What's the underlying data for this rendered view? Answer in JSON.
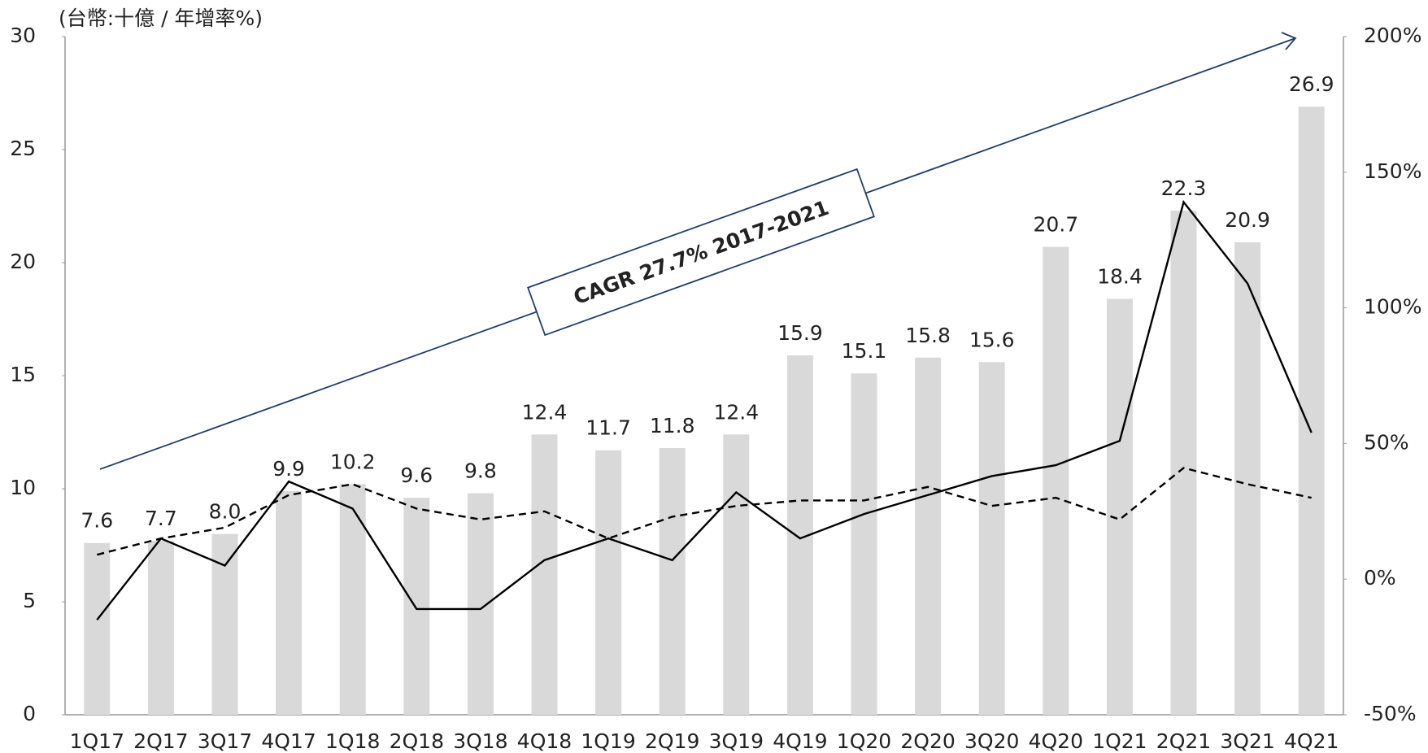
{
  "chart_data": {
    "type": "bar_line",
    "unit_label": "(台幣:十億 / 年增率%)",
    "annotation": "CAGR 27.7% 2017-2021",
    "categories": [
      "1Q17",
      "2Q17",
      "3Q17",
      "4Q17",
      "1Q18",
      "2Q18",
      "3Q18",
      "4Q18",
      "1Q19",
      "2Q19",
      "3Q19",
      "4Q19",
      "1Q20",
      "2Q20",
      "3Q20",
      "4Q20",
      "1Q21",
      "2Q21",
      "3Q21",
      "4Q21"
    ],
    "values": [
      7.6,
      7.7,
      8.0,
      9.9,
      10.2,
      9.6,
      9.8,
      12.4,
      11.7,
      11.8,
      12.4,
      15.9,
      15.1,
      15.8,
      15.6,
      20.7,
      18.4,
      22.3,
      20.9,
      26.9
    ],
    "value_labels": [
      "7.6",
      "7.7",
      "8.0",
      "9.9",
      "10.2",
      "9.6",
      "9.8",
      "12.4",
      "11.7",
      "11.8",
      "12.4",
      "15.9",
      "15.1",
      "15.8",
      "15.6",
      "20.7",
      "18.4",
      "22.3",
      "20.9",
      "26.9"
    ],
    "color": "#d9d9d9",
    "series": [
      {
        "color": "#000000",
        "line_style": "solid",
        "axis": "y2",
        "values": [
          -15,
          15,
          5,
          36,
          26,
          -11,
          -11,
          7,
          15,
          7,
          32,
          15,
          24,
          31,
          38,
          42,
          51,
          139,
          109,
          54
        ]
      },
      {
        "color": "#000000",
        "line_style": "dashed",
        "axis": "y2",
        "values": [
          9,
          15,
          19,
          31,
          35,
          26,
          22,
          25,
          15,
          23,
          27,
          29,
          29,
          34,
          27,
          30,
          22,
          41,
          35,
          30
        ]
      }
    ],
    "ylim": [
      0,
      30
    ],
    "yticks": [
      0,
      5,
      10,
      15,
      20,
      25,
      30
    ],
    "y2lim": [
      -50,
      200
    ],
    "y2ticks": [
      {
        "value": -50,
        "label": "-50%"
      },
      {
        "value": 0,
        "label": "0%"
      },
      {
        "value": 50,
        "label": "50%"
      },
      {
        "value": 100,
        "label": "100%"
      },
      {
        "value": 150,
        "label": "150%"
      },
      {
        "value": 200,
        "label": "200%"
      }
    ],
    "annotation_color": "#1f3d6b"
  }
}
